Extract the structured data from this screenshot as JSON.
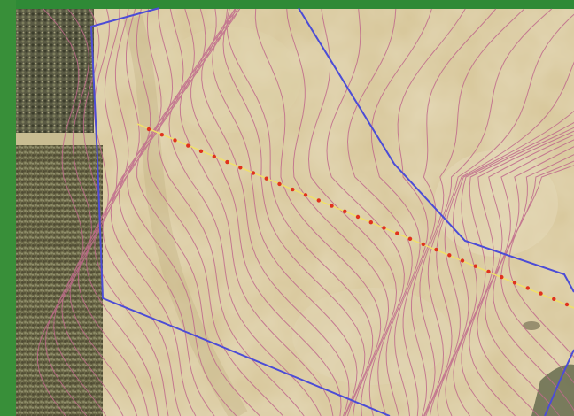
{
  "map": {
    "colors": {
      "frame_green": "#2f8a36",
      "field_tan": "#d9c89b",
      "forest_dark": "#5f5a3e",
      "forest_light": "#8a8a64",
      "contour": "#c06a8c",
      "boundary": "#4c4cd6",
      "transect_line": "#f0e06a",
      "sample_point": "#e0321e"
    },
    "layers": {
      "base": "aerial-imagery",
      "contours": "elevation-contour-lines",
      "boundary": "field-boundary-polygon",
      "transect": "sampling-transect",
      "points": "sample-points"
    },
    "sample_point_count": 33
  }
}
